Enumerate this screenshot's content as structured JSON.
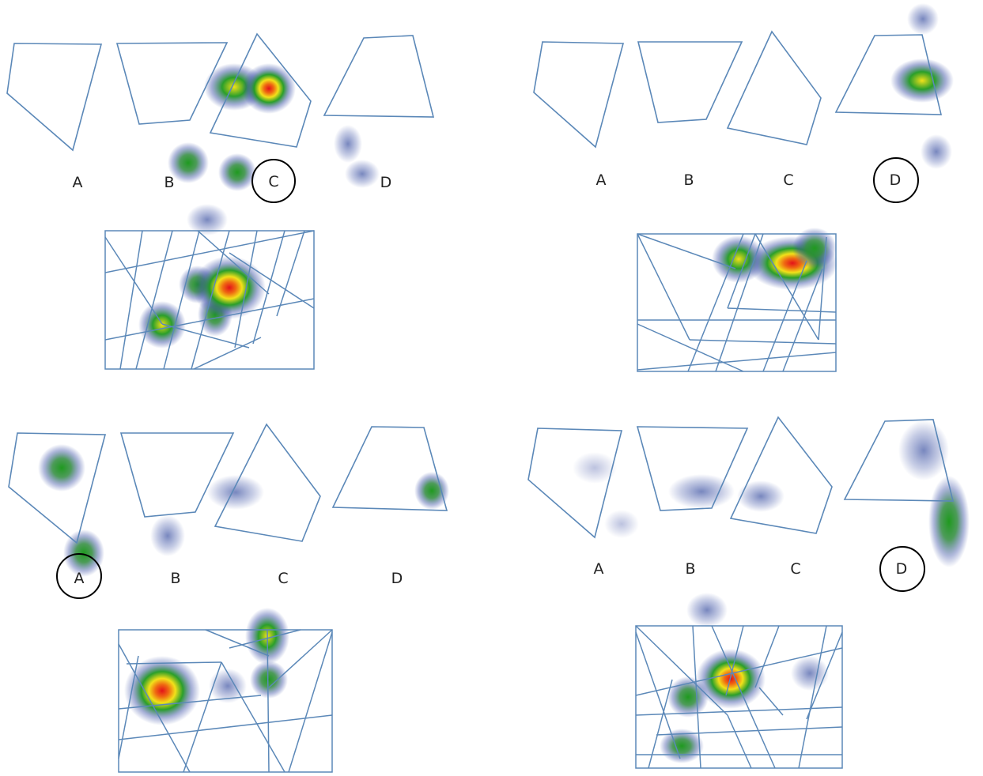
{
  "colors": {
    "outline": "#5b88b8",
    "heat_low": "#3a4fa6",
    "heat_mid": "#1f9a1f",
    "heat_high": "#f2e11a",
    "heat_peak": "#e3121a",
    "circle": "#000000"
  },
  "panels": [
    {
      "id": "top-left",
      "labels": [
        "A",
        "B",
        "C",
        "D"
      ],
      "circled": "C"
    },
    {
      "id": "top-right",
      "labels": [
        "A",
        "B",
        "C",
        "D"
      ],
      "circled": "D"
    },
    {
      "id": "bottom-left",
      "labels": [
        "A",
        "B",
        "C",
        "D"
      ],
      "circled": "A"
    },
    {
      "id": "bottom-right",
      "labels": [
        "A",
        "B",
        "C",
        "D"
      ],
      "circled": "D"
    }
  ]
}
